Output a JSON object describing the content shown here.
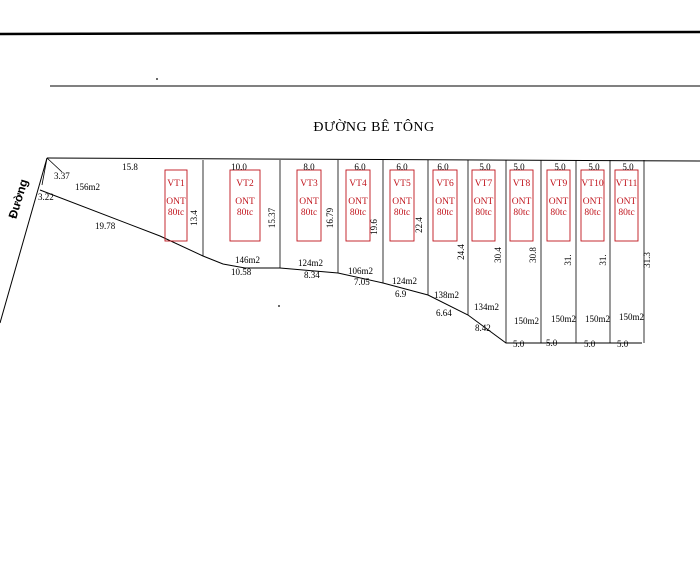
{
  "road_label": "ĐƯỜNG BÊ TÔNG",
  "side_road_label": "Đường",
  "edge_dims": {
    "left_top": "3.37",
    "left_bottom": "3.22",
    "plot1_back": "19.78"
  },
  "plots": [
    {
      "id": "VT1",
      "line1": "VT1",
      "line2": "ONT",
      "line3": "80tc",
      "front": "15.8",
      "area": "156m2",
      "depth": "13.4",
      "rear": ""
    },
    {
      "id": "VT2",
      "line1": "VT2",
      "line2": "ONT",
      "line3": "80tc",
      "front": "10.0",
      "area": "146m2",
      "depth": "15.37",
      "rear": "10.58"
    },
    {
      "id": "VT3",
      "line1": "VT3",
      "line2": "ONT",
      "line3": "80tc",
      "front": "8.0",
      "area": "124m2",
      "depth": "16.79",
      "rear": "8.34"
    },
    {
      "id": "VT4",
      "line1": "VT4",
      "line2": "ONT",
      "line3": "80tc",
      "front": "6.0",
      "area": "106m2",
      "depth": "19.6",
      "rear": "7.05"
    },
    {
      "id": "VT5",
      "line1": "VT5",
      "line2": "ONT",
      "line3": "80tc",
      "front": "6.0",
      "area": "124m2",
      "depth": "22.4",
      "rear": "6.9"
    },
    {
      "id": "VT6",
      "line1": "VT6",
      "line2": "ONT",
      "line3": "80tc",
      "front": "6.0",
      "area": "138m2",
      "depth": "24.4",
      "rear": "6.64"
    },
    {
      "id": "VT7",
      "line1": "VT7",
      "line2": "ONT",
      "line3": "80tc",
      "front": "5.0",
      "area": "134m2",
      "depth": "30.4",
      "rear": "8.42"
    },
    {
      "id": "VT8",
      "line1": "VT8",
      "line2": "ONT",
      "line3": "80tc",
      "front": "5.0",
      "area": "150m2",
      "depth": "30.8",
      "rear": "5.0"
    },
    {
      "id": "VT9",
      "line1": "VT9",
      "line2": "ONT",
      "line3": "80tc",
      "front": "5.0",
      "area": "150m2",
      "depth": "31.",
      "rear": "5.0"
    },
    {
      "id": "VT10",
      "line1": "VT10",
      "line2": "ONT",
      "line3": "80tc",
      "front": "5.0",
      "area": "150m2",
      "depth": "31.",
      "rear": "5.0"
    },
    {
      "id": "VT11",
      "line1": "VT11",
      "line2": "ONT",
      "line3": "80tc",
      "front": "5.0",
      "area": "150m2",
      "depth": "31.3",
      "rear": "5.0"
    }
  ],
  "colors": {
    "line": "#000000",
    "label_box": "#c0141c",
    "label_text": "#c0141c"
  }
}
